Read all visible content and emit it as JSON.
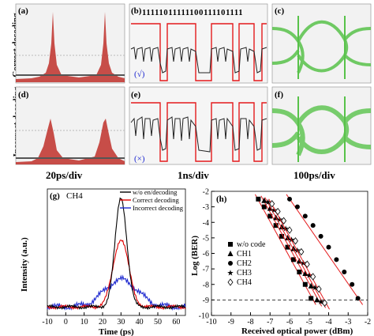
{
  "row_labels": {
    "top": "Correct decoding",
    "bottom": "Incorrect decoding"
  },
  "column_labels": [
    "20ps/div",
    "1ns/div",
    "100ps/div"
  ],
  "panels": {
    "a": "(a)",
    "b": "(b)",
    "c": "(c)",
    "d": "(d)",
    "e": "(e)",
    "f": "(f)",
    "g": "(g)",
    "h": "(h)"
  },
  "bit_pattern": "11111011111100111101111",
  "check_mark": "(√)",
  "cross_mark": "(×)",
  "chart_data": [
    {
      "panel": "(g)",
      "type": "line",
      "annotation": "CH4",
      "xlabel": "Time (ps)",
      "ylabel": "Intensity (a.u.)",
      "xlim": [
        -10,
        65
      ],
      "xticks": [
        -10,
        0,
        10,
        20,
        30,
        40,
        50,
        60
      ],
      "legend_position": "top-right",
      "series": [
        {
          "name": "w/o en/decoding",
          "color": "#000000",
          "peak_x": 30,
          "peak_y": 1.0
        },
        {
          "name": "Correct decoding",
          "color": "#e00000",
          "peak_x": 30,
          "peak_y": 0.62
        },
        {
          "name": "Incorrect decoding",
          "color": "#1f2ad0",
          "peak_x": 30,
          "peak_y": 0.25
        }
      ]
    },
    {
      "panel": "(h)",
      "type": "scatter",
      "xlabel": "Received optical power (dBm)",
      "ylabel": "Log (BER)",
      "xlim": [
        -10,
        -2
      ],
      "ylim": [
        -10,
        -2
      ],
      "xticks": [
        -10,
        -9,
        -8,
        -7,
        -6,
        -5,
        -4,
        -3,
        -2
      ],
      "yticks": [
        -2,
        -3,
        -4,
        -5,
        -6,
        -7,
        -8,
        -9,
        -10
      ],
      "threshold_y": -9,
      "legend_position": "middle-left",
      "series": [
        {
          "name": "w/o code",
          "marker": "square",
          "x": [
            -7.6,
            -7.3,
            -7.0,
            -6.7,
            -6.4,
            -6.1,
            -5.8,
            -5.5,
            -5.2,
            -4.9
          ],
          "y": [
            -2.5,
            -3.0,
            -3.6,
            -4.2,
            -4.9,
            -5.6,
            -6.4,
            -7.2,
            -8.0,
            -8.9
          ]
        },
        {
          "name": "CH1",
          "marker": "triangle",
          "x": [
            -7.3,
            -7.0,
            -6.7,
            -6.4,
            -6.1,
            -5.8,
            -5.5,
            -5.2,
            -4.9,
            -4.6
          ],
          "y": [
            -2.6,
            -3.1,
            -3.7,
            -4.3,
            -5.0,
            -5.7,
            -6.5,
            -7.3,
            -8.1,
            -9.0
          ]
        },
        {
          "name": "CH2",
          "marker": "circle",
          "x": [
            -6.0,
            -5.6,
            -5.2,
            -4.8,
            -4.4,
            -4.0,
            -3.6,
            -3.2,
            -2.8,
            -2.5
          ],
          "y": [
            -2.5,
            -3.0,
            -3.6,
            -4.2,
            -4.9,
            -5.6,
            -6.4,
            -7.2,
            -8.0,
            -8.9
          ]
        },
        {
          "name": "CH3",
          "marker": "star",
          "x": [
            -7.1,
            -6.8,
            -6.5,
            -6.2,
            -5.9,
            -5.6,
            -5.3,
            -5.0,
            -4.7,
            -4.4
          ],
          "y": [
            -2.7,
            -3.2,
            -3.8,
            -4.4,
            -5.1,
            -5.8,
            -6.6,
            -7.4,
            -8.2,
            -9.1
          ]
        },
        {
          "name": "CH4",
          "marker": "diamond",
          "x": [
            -6.9,
            -6.6,
            -6.3,
            -6.0,
            -5.7,
            -5.4,
            -5.1,
            -4.8,
            -4.5,
            -4.2
          ],
          "y": [
            -2.8,
            -3.3,
            -3.9,
            -4.5,
            -5.2,
            -5.9,
            -6.7,
            -7.5,
            -8.3,
            -9.2
          ]
        }
      ]
    }
  ],
  "colors": {
    "eye": "#58c24a",
    "hist": "#c0302a",
    "trace_red": "#e41a1c",
    "waveform": "#222222"
  }
}
